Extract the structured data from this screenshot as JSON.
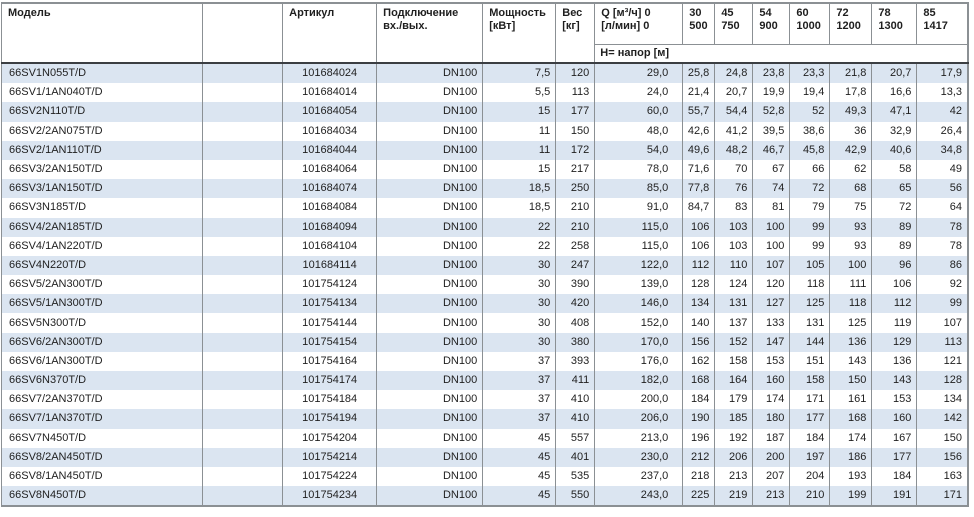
{
  "colors": {
    "stripe_blue": "#dbe5f1",
    "grid_border": "#8b9094",
    "header_rule": "#3b3e42",
    "text": "#1f1f1f"
  },
  "table": {
    "header": {
      "model": "Модель",
      "article": "Артикул",
      "connection_line1": "Подключение",
      "connection_line2": "вх./вых.",
      "power_line1": "Мощность",
      "power_line2": "[кВт]",
      "weight_line1": "Вес",
      "weight_line2": "[кг]",
      "q_line1": "Q [м³/ч] 0",
      "q_line2": "[л/мин] 0",
      "flow_columns": [
        {
          "m3h": "30",
          "lmin": "500"
        },
        {
          "m3h": "45",
          "lmin": "750"
        },
        {
          "m3h": "54",
          "lmin": "900"
        },
        {
          "m3h": "60",
          "lmin": "1000"
        },
        {
          "m3h": "72",
          "lmin": "1200"
        },
        {
          "m3h": "78",
          "lmin": "1300"
        },
        {
          "m3h": "85",
          "lmin": "1417"
        }
      ],
      "subheader": "Н= напор [м]"
    },
    "rows": [
      {
        "model": "66SV1N055T/D",
        "article": "101684024",
        "connection": "DN100",
        "power": "7,5",
        "weight": "120",
        "heads": [
          "29,0",
          "25,8",
          "24,8",
          "23,8",
          "23,3",
          "21,8",
          "20,7",
          "17,9"
        ]
      },
      {
        "model": "66SV1/1AN040T/D",
        "article": "101684014",
        "connection": "DN100",
        "power": "5,5",
        "weight": "113",
        "heads": [
          "24,0",
          "21,4",
          "20,7",
          "19,9",
          "19,4",
          "17,8",
          "16,6",
          "13,3"
        ]
      },
      {
        "model": "66SV2N110T/D",
        "article": "101684054",
        "connection": "DN100",
        "power": "15",
        "weight": "177",
        "heads": [
          "60,0",
          "55,7",
          "54,4",
          "52,8",
          "52",
          "49,3",
          "47,1",
          "42"
        ]
      },
      {
        "model": "66SV2/2AN075T/D",
        "article": "101684034",
        "connection": "DN100",
        "power": "11",
        "weight": "150",
        "heads": [
          "48,0",
          "42,6",
          "41,2",
          "39,5",
          "38,6",
          "36",
          "32,9",
          "26,4"
        ]
      },
      {
        "model": "66SV2/1AN110T/D",
        "article": "101684044",
        "connection": "DN100",
        "power": "11",
        "weight": "172",
        "heads": [
          "54,0",
          "49,6",
          "48,2",
          "46,7",
          "45,8",
          "42,9",
          "40,6",
          "34,8"
        ]
      },
      {
        "model": "66SV3/2AN150T/D",
        "article": "101684064",
        "connection": "DN100",
        "power": "15",
        "weight": "217",
        "heads": [
          "78,0",
          "71,6",
          "70",
          "67",
          "66",
          "62",
          "58",
          "49"
        ]
      },
      {
        "model": "66SV3/1AN150T/D",
        "article": "101684074",
        "connection": "DN100",
        "power": "18,5",
        "weight": "250",
        "heads": [
          "85,0",
          "77,8",
          "76",
          "74",
          "72",
          "68",
          "65",
          "56"
        ]
      },
      {
        "model": "66SV3N185T/D",
        "article": "101684084",
        "connection": "DN100",
        "power": "18,5",
        "weight": "210",
        "heads": [
          "91,0",
          "84,7",
          "83",
          "81",
          "79",
          "75",
          "72",
          "64"
        ]
      },
      {
        "model": "66SV4/2AN185T/D",
        "article": "101684094",
        "connection": "DN100",
        "power": "22",
        "weight": "210",
        "heads": [
          "115,0",
          "106",
          "103",
          "100",
          "99",
          "93",
          "89",
          "78"
        ]
      },
      {
        "model": "66SV4/1AN220T/D",
        "article": "101684104",
        "connection": "DN100",
        "power": "22",
        "weight": "258",
        "heads": [
          "115,0",
          "106",
          "103",
          "100",
          "99",
          "93",
          "89",
          "78"
        ]
      },
      {
        "model": "66SV4N220T/D",
        "article": "101684114",
        "connection": "DN100",
        "power": "30",
        "weight": "247",
        "heads": [
          "122,0",
          "112",
          "110",
          "107",
          "105",
          "100",
          "96",
          "86"
        ]
      },
      {
        "model": "66SV5/2AN300T/D",
        "article": "101754124",
        "connection": "DN100",
        "power": "30",
        "weight": "390",
        "heads": [
          "139,0",
          "128",
          "124",
          "120",
          "118",
          "111",
          "106",
          "92"
        ]
      },
      {
        "model": "66SV5/1AN300T/D",
        "article": "101754134",
        "connection": "DN100",
        "power": "30",
        "weight": "420",
        "heads": [
          "146,0",
          "134",
          "131",
          "127",
          "125",
          "118",
          "112",
          "99"
        ]
      },
      {
        "model": "66SV5N300T/D",
        "article": "101754144",
        "connection": "DN100",
        "power": "30",
        "weight": "408",
        "heads": [
          "152,0",
          "140",
          "137",
          "133",
          "131",
          "125",
          "119",
          "107"
        ]
      },
      {
        "model": "66SV6/2AN300T/D",
        "article": "101754154",
        "connection": "DN100",
        "power": "30",
        "weight": "380",
        "heads": [
          "170,0",
          "156",
          "152",
          "147",
          "144",
          "136",
          "129",
          "113"
        ]
      },
      {
        "model": "66SV6/1AN300T/D",
        "article": "101754164",
        "connection": "DN100",
        "power": "37",
        "weight": "393",
        "heads": [
          "176,0",
          "162",
          "158",
          "153",
          "151",
          "143",
          "136",
          "121"
        ]
      },
      {
        "model": "66SV6N370T/D",
        "article": "101754174",
        "connection": "DN100",
        "power": "37",
        "weight": "411",
        "heads": [
          "182,0",
          "168",
          "164",
          "160",
          "158",
          "150",
          "143",
          "128"
        ]
      },
      {
        "model": "66SV7/2AN370T/D",
        "article": "101754184",
        "connection": "DN100",
        "power": "37",
        "weight": "410",
        "heads": [
          "200,0",
          "184",
          "179",
          "174",
          "171",
          "161",
          "153",
          "134"
        ]
      },
      {
        "model": "66SV7/1AN370T/D",
        "article": "101754194",
        "connection": "DN100",
        "power": "37",
        "weight": "410",
        "heads": [
          "206,0",
          "190",
          "185",
          "180",
          "177",
          "168",
          "160",
          "142"
        ]
      },
      {
        "model": "66SV7N450T/D",
        "article": "101754204",
        "connection": "DN100",
        "power": "45",
        "weight": "557",
        "heads": [
          "213,0",
          "196",
          "192",
          "187",
          "184",
          "174",
          "167",
          "150"
        ]
      },
      {
        "model": "66SV8/2AN450T/D",
        "article": "101754214",
        "connection": "DN100",
        "power": "45",
        "weight": "401",
        "heads": [
          "230,0",
          "212",
          "206",
          "200",
          "197",
          "186",
          "177",
          "156"
        ]
      },
      {
        "model": "66SV8/1AN450T/D",
        "article": "101754224",
        "connection": "DN100",
        "power": "45",
        "weight": "535",
        "heads": [
          "237,0",
          "218",
          "213",
          "207",
          "204",
          "193",
          "184",
          "163"
        ]
      },
      {
        "model": "66SV8N450T/D",
        "article": "101754234",
        "connection": "DN100",
        "power": "45",
        "weight": "550",
        "heads": [
          "243,0",
          "225",
          "219",
          "213",
          "210",
          "199",
          "191",
          "171"
        ]
      }
    ]
  }
}
